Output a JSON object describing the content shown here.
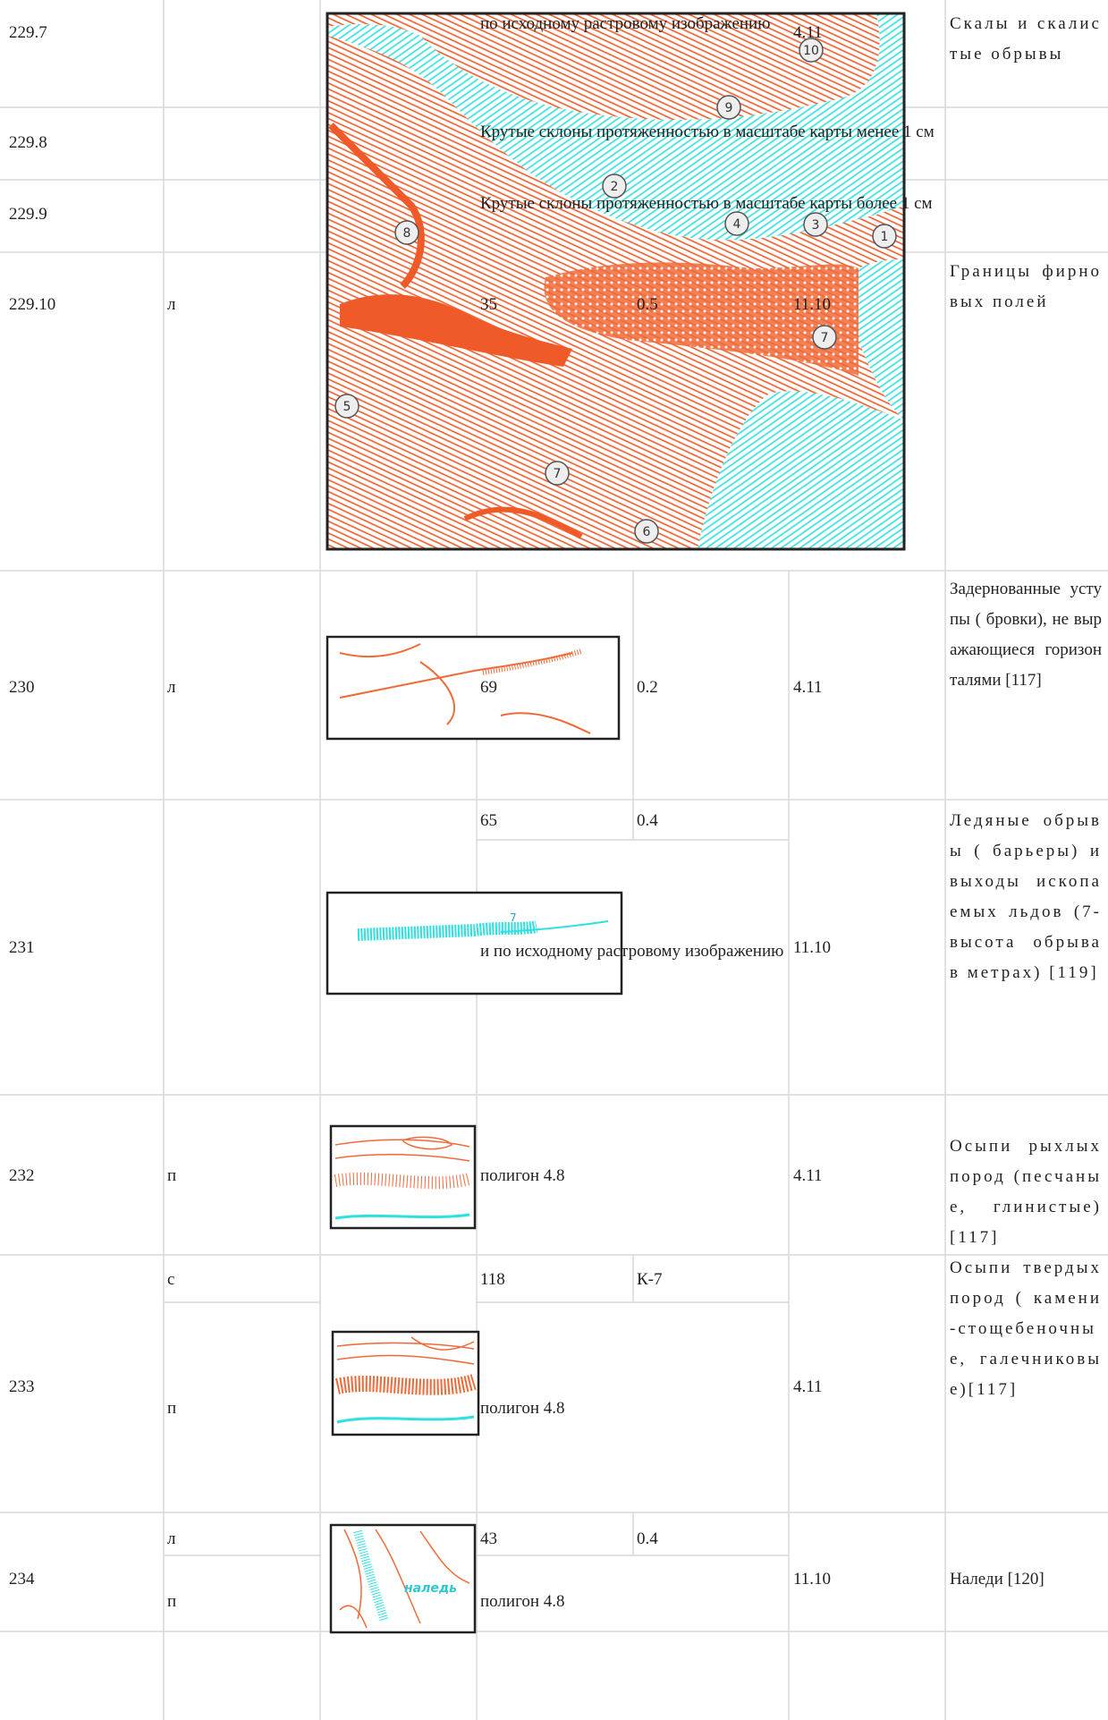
{
  "rows": [
    {
      "code": "229.7",
      "note": "по исходному растровому изображению",
      "layer": "4.11",
      "description": "Скалы и скалистые обрывы"
    },
    {
      "code": "229.8",
      "note": "Крутые склоны протяженностью в масштабе карты менее 1 см"
    },
    {
      "code": "229.9",
      "note": "Крутые склоны протяженностью в масштабе карты более 1 см"
    },
    {
      "code": "229.10",
      "type": "л",
      "number": "35",
      "thickness": "0.5",
      "layer": "11.10",
      "description": "Границы фирновых полей"
    },
    {
      "code": "230",
      "type": "л",
      "number": "69",
      "thickness": "0.2",
      "layer": "4.11",
      "description": "Задернованные уступы ( бровки), не выражающиеся горизонталями [117]"
    },
    {
      "code": "231",
      "number": "65",
      "thickness": "0.4",
      "note": "и по исходному растровому изображению",
      "layer": "11.10",
      "description": "Ледяные обрывы ( барьеры) и выходы ископаемых льдов (7-высота обрыва в метрах) [119]",
      "image_label": "7"
    },
    {
      "code": "232",
      "type": "п",
      "note": "полигон 4.8",
      "layer": "4.11",
      "description": "Осыпи рыхлых пород (песчаные, глинистые) [117]"
    },
    {
      "code": "233",
      "types": [
        "с",
        "п"
      ],
      "number": "118",
      "thickness": "К-7",
      "note": "полигон 4.8",
      "layer": "4.11",
      "description": "Осыпи твердых пород ( камени-стощебеночные, галечниковые)[117]"
    },
    {
      "code": "234",
      "types": [
        "л",
        "п"
      ],
      "number": "43",
      "thickness": "0.4",
      "note": "полигон 4.8",
      "layer": "11.10",
      "description": "Наледи [120]",
      "image_label": "наледь"
    }
  ],
  "map_labels": [
    "10",
    "9",
    "2",
    "4",
    "3",
    "1",
    "8",
    "7",
    "5",
    "7",
    "6"
  ]
}
